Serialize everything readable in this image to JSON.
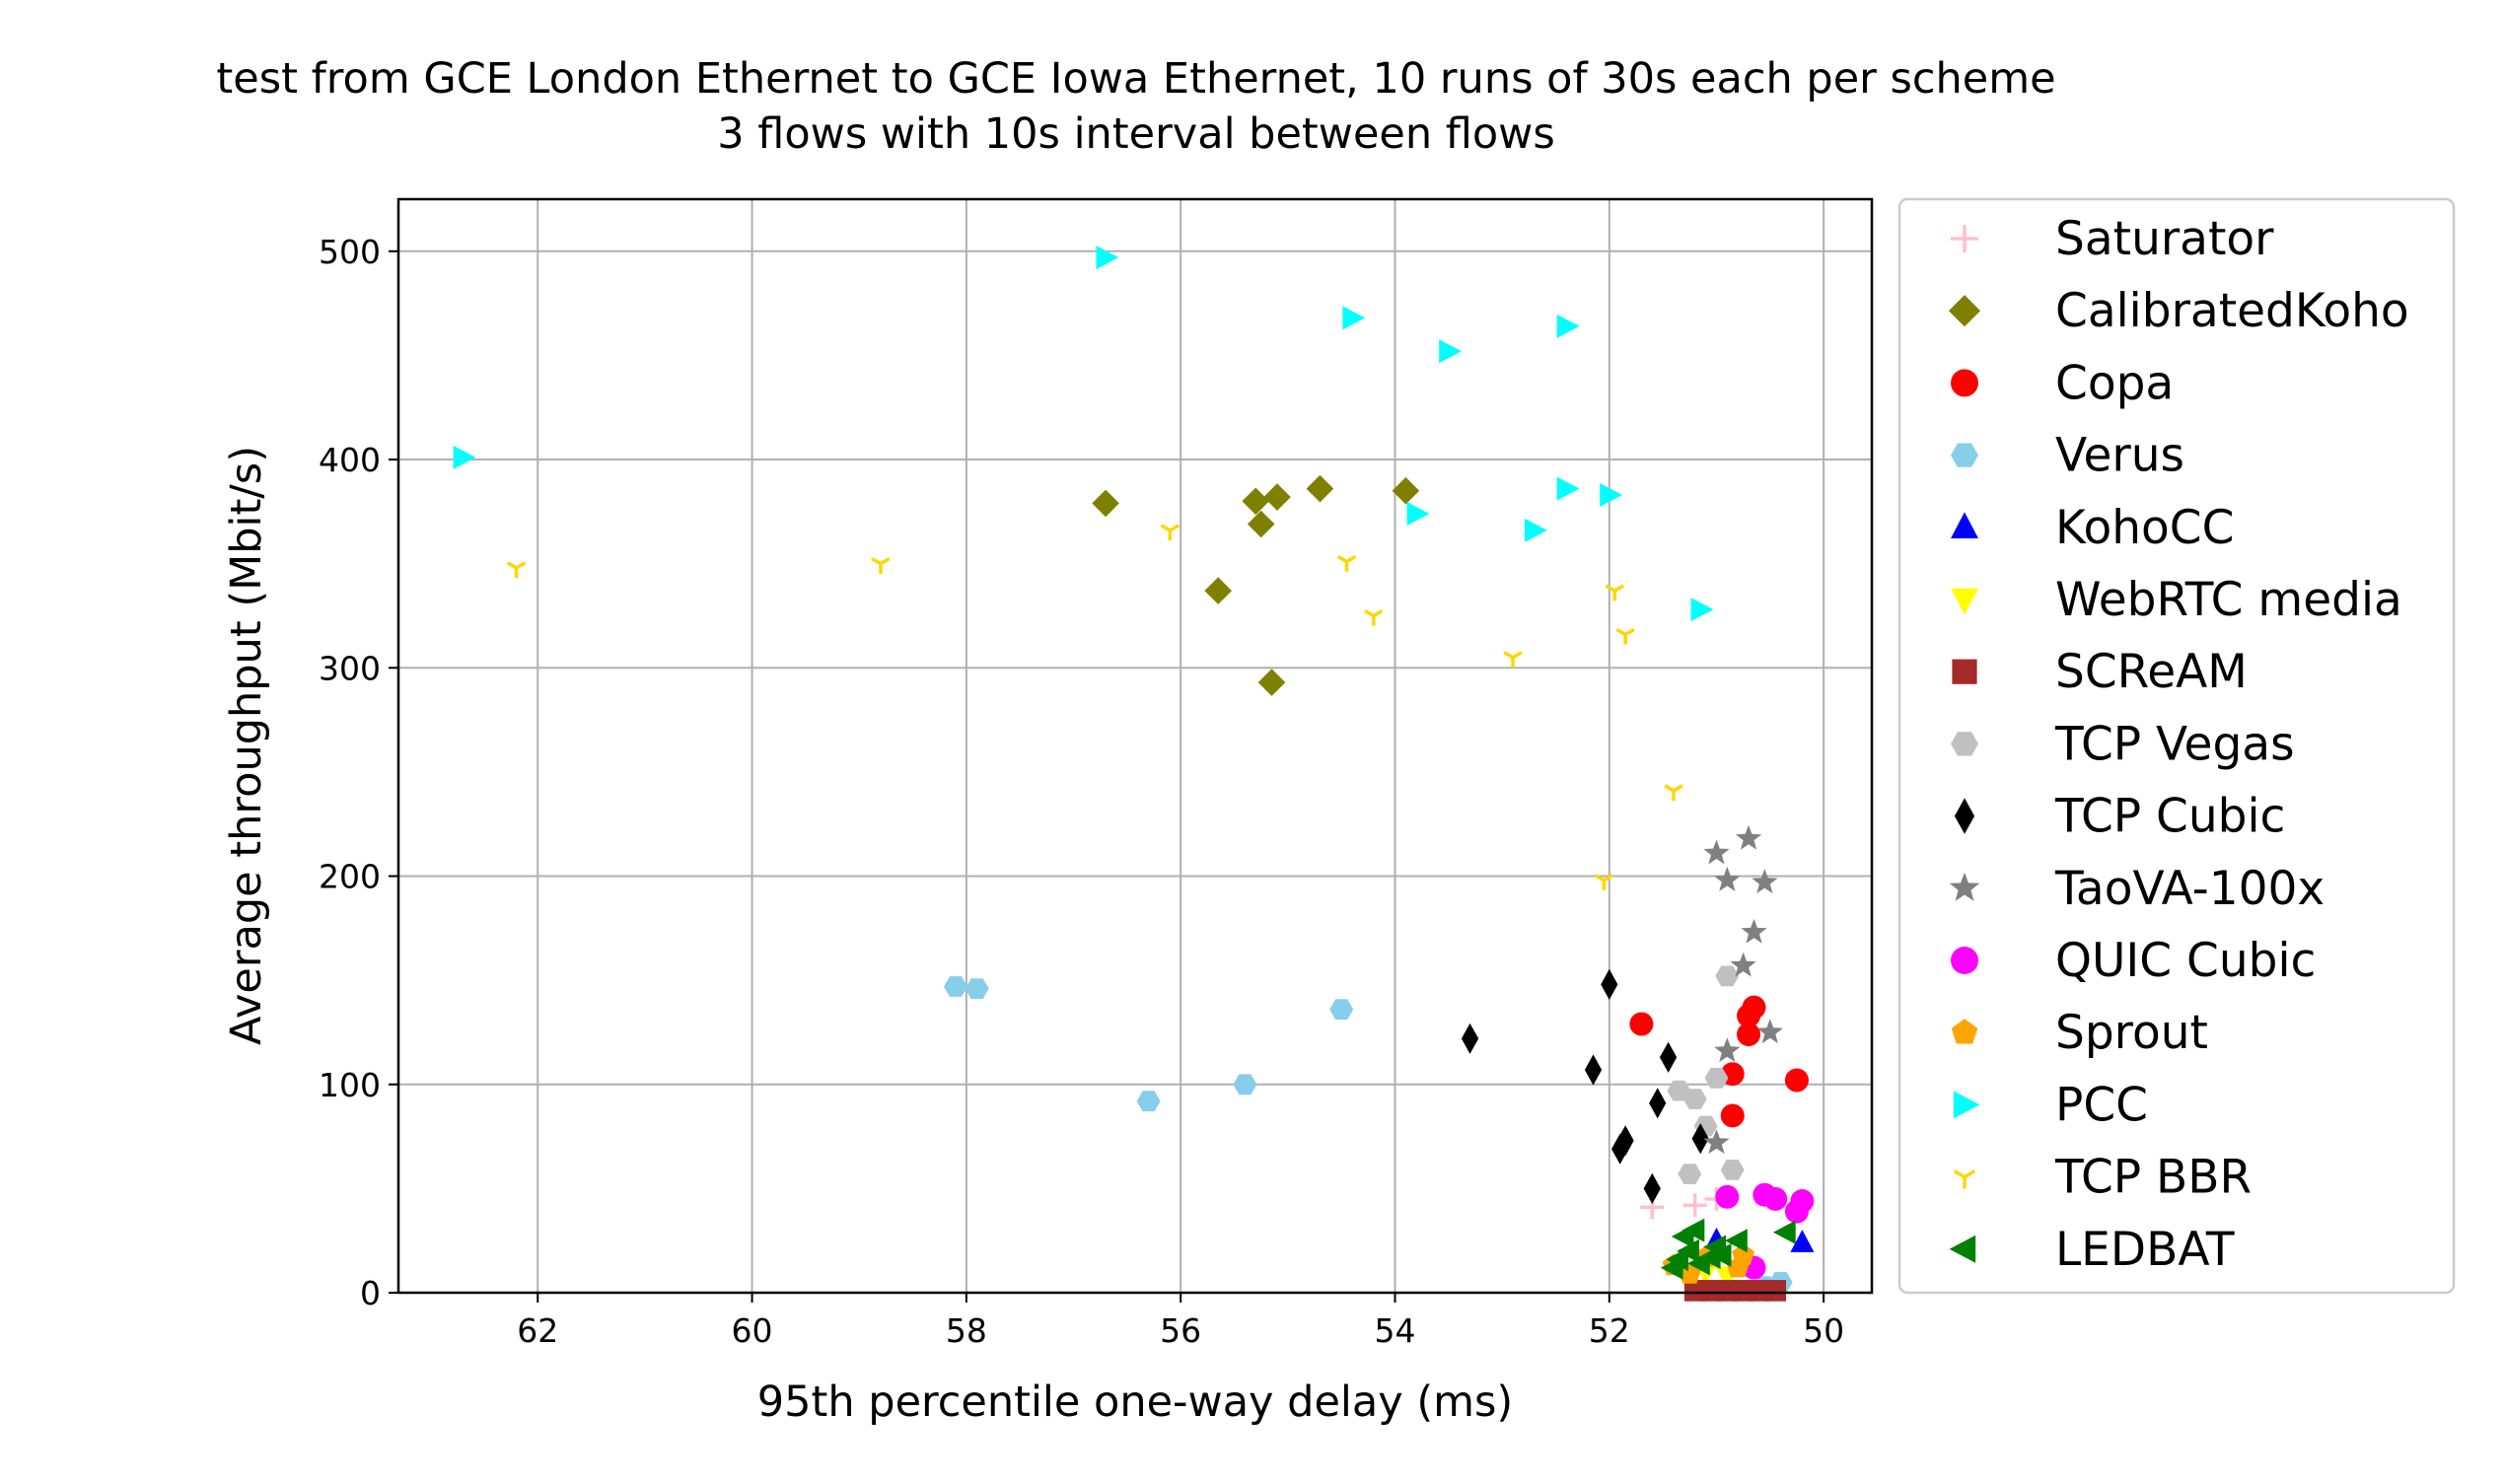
{
  "chart_data": {
    "type": "scatter",
    "title": "test from GCE London Ethernet to GCE Iowa Ethernet, 10 runs of 30s each per scheme",
    "subtitle": "3 flows with 10s interval between flows",
    "xlabel": "95th percentile one-way delay (ms)",
    "ylabel": "Average throughput (Mbit/s)",
    "xlim": [
      63.3,
      49.55
    ],
    "ylim": [
      0,
      525
    ],
    "x_inverted": true,
    "xticks": [
      62,
      60,
      58,
      56,
      54,
      52,
      50
    ],
    "yticks": [
      0,
      100,
      200,
      300,
      400,
      500
    ],
    "grid": true,
    "legend_position": "outside-right",
    "series": [
      {
        "name": "Saturator",
        "color": "#ffc0cb",
        "marker": "plus",
        "points": [
          [
            51.6,
            41
          ],
          [
            51.2,
            42
          ],
          [
            51.0,
            45
          ]
        ]
      },
      {
        "name": "CalibratedKoho",
        "color": "#808000",
        "marker": "diamond",
        "points": [
          [
            56.7,
            379
          ],
          [
            55.3,
            380
          ],
          [
            55.1,
            382
          ],
          [
            55.25,
            369
          ],
          [
            54.7,
            386
          ],
          [
            53.9,
            385
          ],
          [
            55.65,
            337
          ],
          [
            55.15,
            293
          ]
        ]
      },
      {
        "name": "Copa",
        "color": "#ff0000",
        "marker": "circle",
        "points": [
          [
            51.7,
            129
          ],
          [
            50.65,
            137
          ],
          [
            50.7,
            133
          ],
          [
            50.7,
            124
          ],
          [
            50.85,
            105
          ],
          [
            50.25,
            102
          ],
          [
            50.85,
            85
          ]
        ]
      },
      {
        "name": "Verus",
        "color": "#87ceeb",
        "marker": "hexagon",
        "points": [
          [
            58.1,
            147
          ],
          [
            57.9,
            146
          ],
          [
            54.5,
            136
          ],
          [
            56.3,
            92
          ],
          [
            55.4,
            100
          ],
          [
            50.4,
            5
          ],
          [
            50.55,
            3
          ]
        ]
      },
      {
        "name": "KohoCC",
        "color": "#0000ff",
        "marker": "triangle-up",
        "points": [
          [
            50.2,
            24
          ],
          [
            51.0,
            25
          ]
        ]
      },
      {
        "name": "WebRTC media",
        "color": "#ffff00",
        "marker": "triangle-down",
        "points": [
          [
            51.1,
            10
          ],
          [
            50.9,
            8
          ]
        ]
      },
      {
        "name": "SCReAM",
        "color": "#a52a2a",
        "marker": "square",
        "points": [
          [
            51.2,
            1
          ],
          [
            51.05,
            1
          ],
          [
            50.9,
            1
          ],
          [
            50.75,
            1
          ],
          [
            50.6,
            1
          ],
          [
            50.45,
            1
          ]
        ]
      },
      {
        "name": "TCP Vegas",
        "color": "#c0c0c0",
        "marker": "hexagon",
        "points": [
          [
            50.9,
            152
          ],
          [
            51.0,
            103
          ],
          [
            51.2,
            93
          ],
          [
            51.35,
            97
          ],
          [
            51.25,
            57
          ],
          [
            50.85,
            59
          ],
          [
            51.1,
            80
          ]
        ]
      },
      {
        "name": "TCP Cubic",
        "color": "#000000",
        "marker": "thin-diamond",
        "points": [
          [
            52.0,
            148
          ],
          [
            53.3,
            122
          ],
          [
            51.45,
            113
          ],
          [
            52.15,
            107
          ],
          [
            51.55,
            91
          ],
          [
            51.9,
            69
          ],
          [
            51.85,
            73
          ],
          [
            51.15,
            74
          ],
          [
            51.6,
            50
          ]
        ]
      },
      {
        "name": "TaoVA-100x",
        "color": "#808080",
        "marker": "star",
        "points": [
          [
            50.7,
            218
          ],
          [
            51.0,
            211
          ],
          [
            50.9,
            198
          ],
          [
            50.55,
            197
          ],
          [
            50.65,
            173
          ],
          [
            50.75,
            157
          ],
          [
            50.5,
            125
          ],
          [
            50.9,
            116
          ],
          [
            51.0,
            72
          ]
        ]
      },
      {
        "name": "QUIC Cubic",
        "color": "#ff00ff",
        "marker": "circle",
        "points": [
          [
            50.9,
            46
          ],
          [
            50.55,
            47
          ],
          [
            50.45,
            45
          ],
          [
            50.2,
            44
          ],
          [
            50.25,
            39
          ],
          [
            50.65,
            12
          ]
        ]
      },
      {
        "name": "Sprout",
        "color": "#ffa500",
        "marker": "pentagon",
        "points": [
          [
            51.4,
            13
          ],
          [
            51.1,
            17
          ],
          [
            50.75,
            18
          ],
          [
            51.25,
            9
          ],
          [
            50.8,
            12
          ]
        ]
      },
      {
        "name": "PCC",
        "color": "#00ffff",
        "marker": "triangle-right",
        "points": [
          [
            56.7,
            497
          ],
          [
            54.4,
            468
          ],
          [
            52.4,
            464
          ],
          [
            53.5,
            452
          ],
          [
            62.7,
            401
          ],
          [
            52.4,
            386
          ],
          [
            52.0,
            383
          ],
          [
            53.8,
            374
          ],
          [
            52.7,
            366
          ],
          [
            51.15,
            328
          ]
        ]
      },
      {
        "name": "TCP BBR",
        "color": "#ffd700",
        "marker": "tri-down",
        "points": [
          [
            62.2,
            348
          ],
          [
            58.8,
            350
          ],
          [
            56.1,
            366
          ],
          [
            54.45,
            351
          ],
          [
            54.2,
            325
          ],
          [
            51.95,
            337
          ],
          [
            51.85,
            316
          ],
          [
            52.9,
            305
          ],
          [
            51.4,
            241
          ],
          [
            52.05,
            198
          ]
        ]
      },
      {
        "name": "LEDBAT",
        "color": "#008000",
        "marker": "triangle-left",
        "points": [
          [
            51.2,
            30
          ],
          [
            51.3,
            27
          ],
          [
            50.8,
            25
          ],
          [
            50.35,
            29
          ],
          [
            51.0,
            22
          ],
          [
            51.25,
            20
          ],
          [
            51.35,
            16
          ],
          [
            50.95,
            18
          ],
          [
            51.15,
            14
          ],
          [
            51.4,
            12
          ],
          [
            51.05,
            17
          ]
        ]
      }
    ]
  }
}
